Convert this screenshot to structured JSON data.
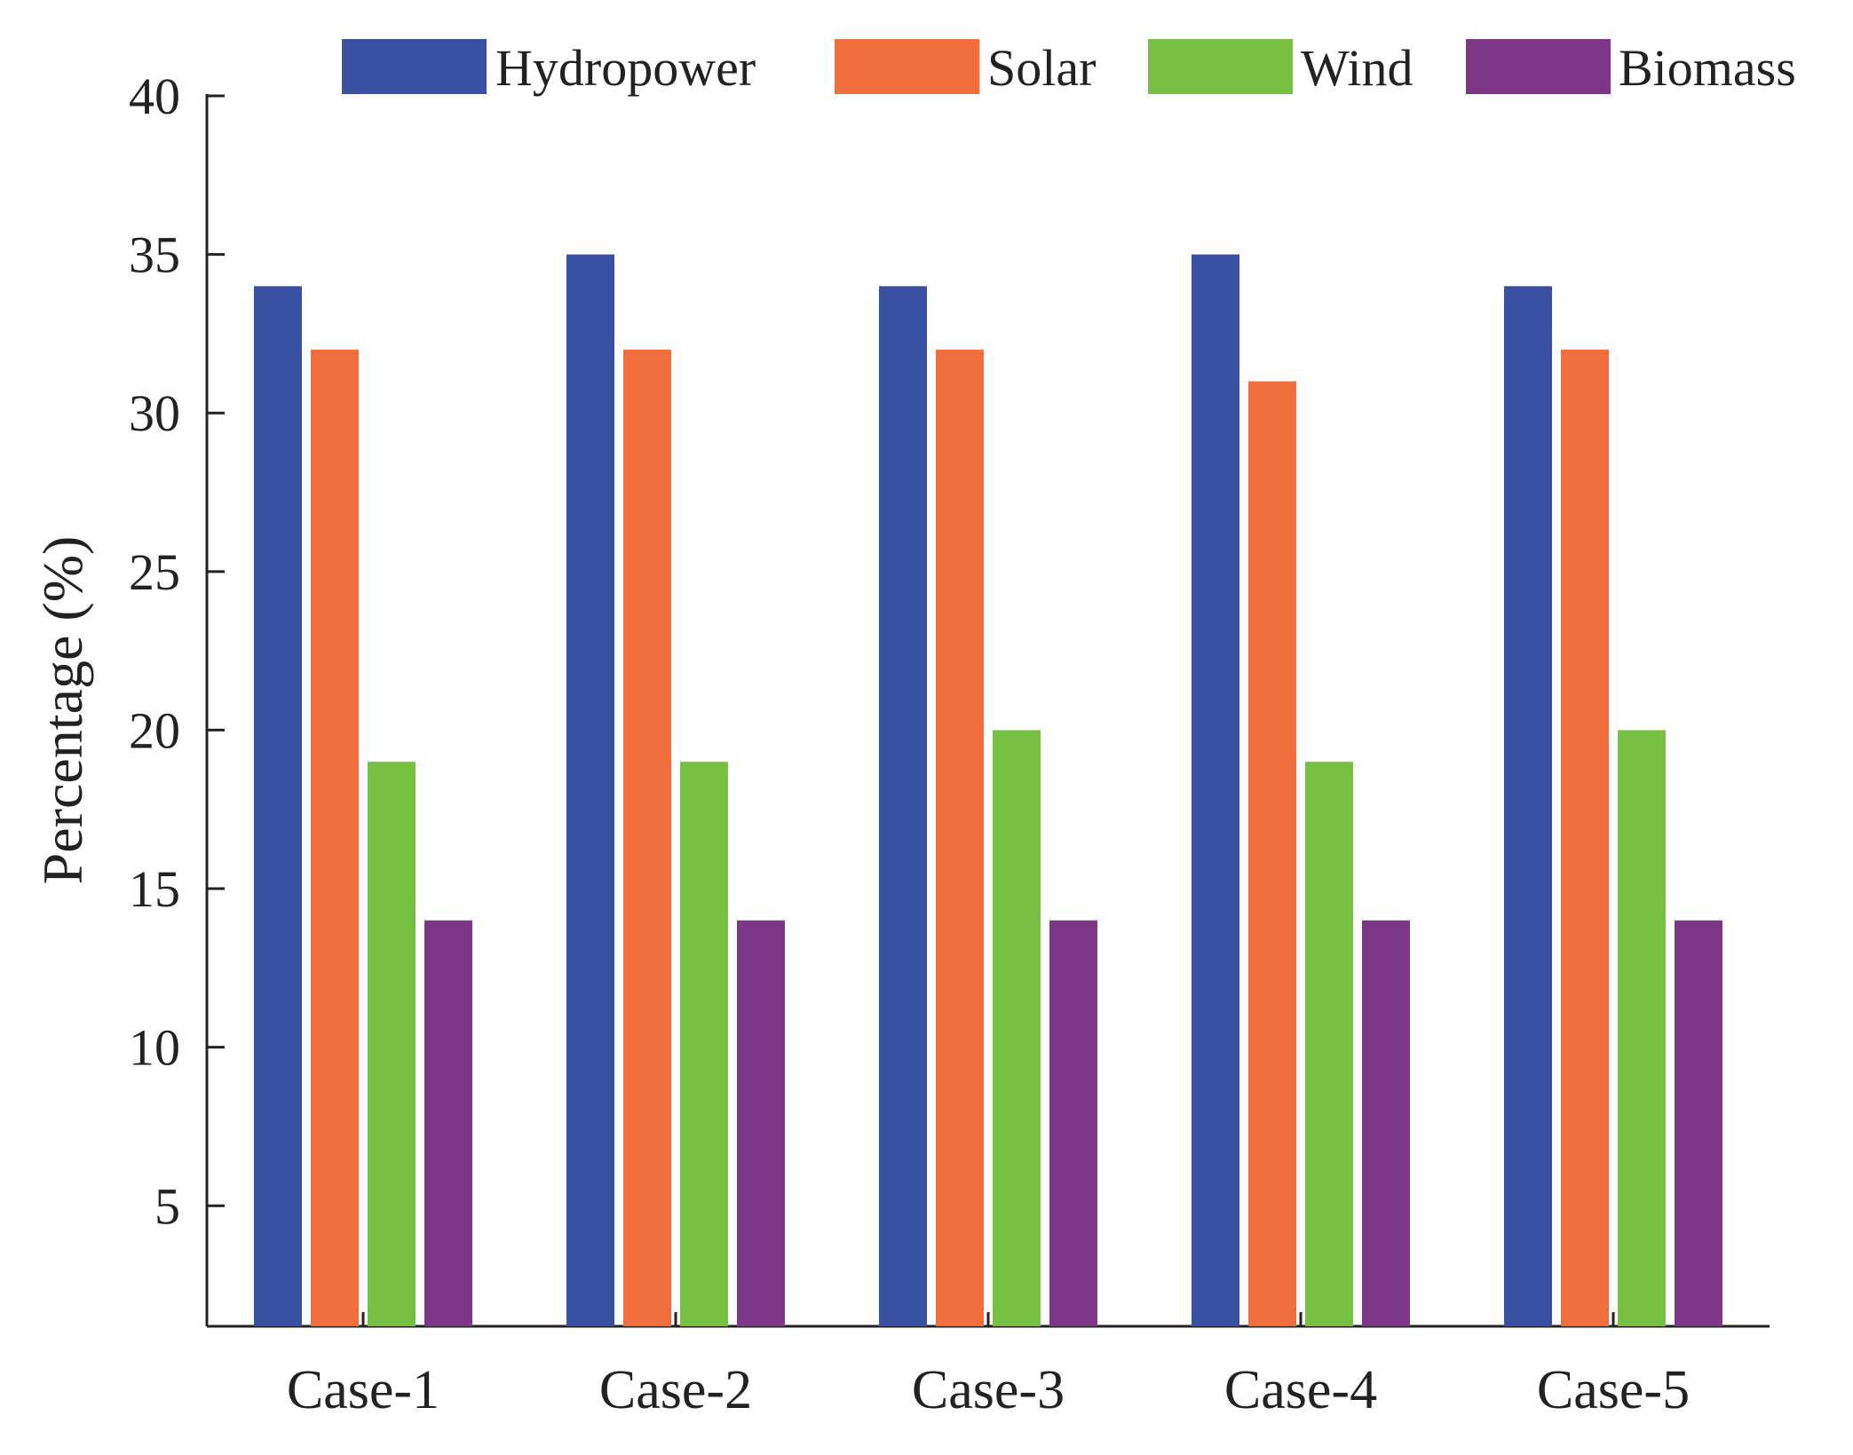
{
  "chart_data": {
    "type": "bar",
    "title": "",
    "xlabel": "",
    "ylabel": "Percentage (%)",
    "categories": [
      "Case-1",
      "Case-2",
      "Case-3",
      "Case-4",
      "Case-5"
    ],
    "series": [
      {
        "name": "Hydropower",
        "color": "#3a50a2",
        "values": [
          34,
          35,
          34,
          35,
          34
        ]
      },
      {
        "name": "Solar",
        "color": "#f26d3d",
        "values": [
          32,
          32,
          32,
          31,
          32
        ]
      },
      {
        "name": "Wind",
        "color": "#76c043",
        "values": [
          19,
          19,
          20,
          19,
          20
        ]
      },
      {
        "name": "Biomass",
        "color": "#7e3687",
        "values": [
          14,
          14,
          14,
          14,
          14
        ]
      }
    ],
    "ylim": [
      1.2,
      40
    ],
    "yticks": [
      5,
      10,
      15,
      20,
      25,
      30,
      35,
      40
    ],
    "ytick_labels": [
      "5",
      "10",
      "15",
      "20",
      "25",
      "30",
      "35",
      "40"
    ],
    "grid": false,
    "legend_position": "top"
  }
}
